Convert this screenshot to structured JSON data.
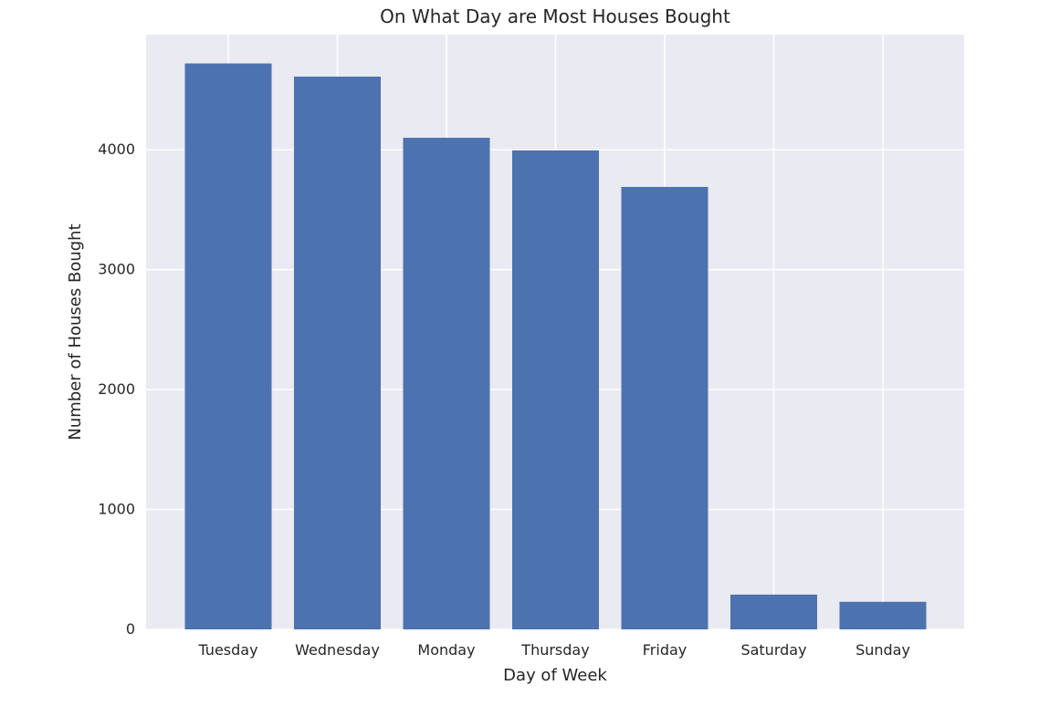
{
  "chart_data": {
    "type": "bar",
    "title": "On What Day are Most Houses Bought",
    "xlabel": "Day of Week",
    "ylabel": "Number of Houses Bought",
    "categories": [
      "Tuesday",
      "Wednesday",
      "Monday",
      "Thursday",
      "Friday",
      "Saturday",
      "Sunday"
    ],
    "values": [
      4720,
      4610,
      4100,
      3995,
      3690,
      290,
      230
    ],
    "ylim": [
      0,
      4960
    ],
    "yticks": [
      0,
      1000,
      2000,
      3000,
      4000
    ],
    "grid": true,
    "style": "seaborn",
    "colors": {
      "bar": "#4c72b0",
      "plot_background": "#eaeaf2",
      "grid": "#ffffff",
      "text": "#262626"
    }
  }
}
